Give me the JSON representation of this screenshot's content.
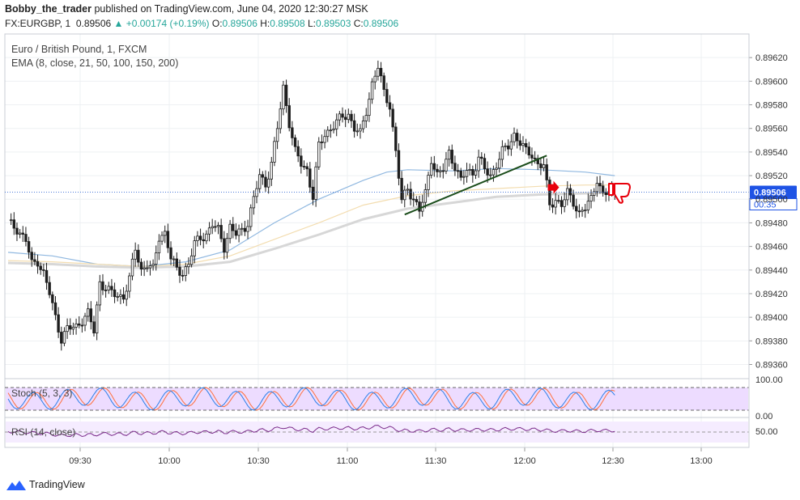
{
  "header": {
    "author": "Bobby_the_trader",
    "published_text": "published on TradingView.com, June 04, 2020 12:30:27 MSK",
    "symbol_line_prefix": "FX:EURGBP, 1",
    "last": "0.89506",
    "change": "+0.00174 (+0.19%)",
    "o_label": "O:",
    "o": "0.89506",
    "h_label": "H:",
    "h": "0.89508",
    "l_label": "L:",
    "l": "0.89503",
    "c_label": "C:",
    "c": "0.89506"
  },
  "legend": {
    "instrument": "Euro / British Pound, 1, FXCM",
    "ema": "EMA (8, close, 21, 50, 100, 150, 200)",
    "stoch": "Stoch (5, 3, 3)",
    "rsi": "RSI (14, close)"
  },
  "price_badge": {
    "value": "0.89506",
    "countdown": "00:35"
  },
  "footer": {
    "brand": "TradingView"
  },
  "colors": {
    "up": "#26a69a",
    "candle": "#1e1e1e",
    "grid": "#eef0f3",
    "ema_blue": "#90b8e0",
    "ema_yellow": "#f3ddb0",
    "ema_gray": "#d7d7d7",
    "trendline": "#1b4d1b",
    "signal": "#e8000b",
    "badge": "#1e53e5",
    "stoch_k": "#2b7fe8",
    "stoch_d": "#ff6f3c",
    "osc_bg": "#eddcff",
    "rsi": "#7a2a8a"
  },
  "chart_data": {
    "type": "candlestick",
    "symbol": "FX:EURGBP",
    "timeframe": "1",
    "y_axis": {
      "ticks": [
        "0.89620",
        "0.89600",
        "0.89580",
        "0.89560",
        "0.89540",
        "0.89520",
        "0.89500",
        "0.89480",
        "0.89460",
        "0.89440",
        "0.89420",
        "0.89400",
        "0.89380",
        "0.89360"
      ],
      "range": [
        0.89348,
        0.8964
      ]
    },
    "x_axis": {
      "ticks": [
        "09:30",
        "10:00",
        "10:30",
        "11:00",
        "11:30",
        "12:00",
        "12:30",
        "13:00"
      ]
    },
    "current_price": 0.89506,
    "close_path": [
      [
        0,
        0.8948
      ],
      [
        3,
        0.89475
      ],
      [
        6,
        0.89465
      ],
      [
        8,
        0.89445
      ],
      [
        10,
        0.89448
      ],
      [
        12,
        0.89437
      ],
      [
        14,
        0.8942
      ],
      [
        16,
        0.894
      ],
      [
        18,
        0.89382
      ],
      [
        20,
        0.8939
      ],
      [
        23,
        0.89392
      ],
      [
        25,
        0.89398
      ],
      [
        27,
        0.89403
      ],
      [
        29,
        0.89388
      ],
      [
        31,
        0.8943
      ],
      [
        34,
        0.89422
      ],
      [
        37,
        0.89418
      ],
      [
        39,
        0.89418
      ],
      [
        41,
        0.89432
      ],
      [
        43,
        0.89458
      ],
      [
        45,
        0.8944
      ],
      [
        47,
        0.89445
      ],
      [
        49,
        0.8944
      ],
      [
        51,
        0.89468
      ],
      [
        53,
        0.89472
      ],
      [
        55,
        0.8945
      ],
      [
        57,
        0.8944
      ],
      [
        59,
        0.89438
      ],
      [
        61,
        0.89445
      ],
      [
        63,
        0.89462
      ],
      [
        65,
        0.89468
      ],
      [
        67,
        0.8947
      ],
      [
        69,
        0.89478
      ],
      [
        71,
        0.89474
      ],
      [
        73,
        0.8946
      ],
      [
        75,
        0.89476
      ],
      [
        77,
        0.8947
      ],
      [
        79,
        0.89474
      ],
      [
        81,
        0.8948
      ],
      [
        83,
        0.895
      ],
      [
        85,
        0.8952
      ],
      [
        87,
        0.89513
      ],
      [
        89,
        0.8953
      ],
      [
        91,
        0.8956
      ],
      [
        93,
        0.89595
      ],
      [
        95,
        0.89565
      ],
      [
        97,
        0.8954
      ],
      [
        99,
        0.8953
      ],
      [
        101,
        0.89525
      ],
      [
        103,
        0.89502
      ],
      [
        105,
        0.89545
      ],
      [
        107,
        0.89555
      ],
      [
        109,
        0.8956
      ],
      [
        111,
        0.89565
      ],
      [
        113,
        0.8957
      ],
      [
        115,
        0.89572
      ],
      [
        117,
        0.8956
      ],
      [
        119,
        0.89555
      ],
      [
        121,
        0.89575
      ],
      [
        123,
        0.89598
      ],
      [
        125,
        0.89612
      ],
      [
        127,
        0.8959
      ],
      [
        129,
        0.8958
      ],
      [
        131,
        0.8954
      ],
      [
        133,
        0.89498
      ],
      [
        135,
        0.8951
      ],
      [
        137,
        0.895
      ],
      [
        139,
        0.8949
      ],
      [
        141,
        0.89505
      ],
      [
        143,
        0.89535
      ],
      [
        145,
        0.8952
      ],
      [
        147,
        0.89525
      ],
      [
        149,
        0.8954
      ],
      [
        151,
        0.89528
      ],
      [
        153,
        0.89515
      ],
      [
        155,
        0.89525
      ],
      [
        157,
        0.89522
      ],
      [
        159,
        0.89535
      ],
      [
        161,
        0.89525
      ],
      [
        163,
        0.8952
      ],
      [
        165,
        0.8953
      ],
      [
        167,
        0.8954
      ],
      [
        169,
        0.89545
      ],
      [
        171,
        0.89555
      ],
      [
        173,
        0.89548
      ],
      [
        175,
        0.8954
      ],
      [
        177,
        0.89538
      ],
      [
        179,
        0.8953
      ],
      [
        181,
        0.89528
      ],
      [
        183,
        0.89495
      ],
      [
        185,
        0.895
      ],
      [
        187,
        0.89495
      ],
      [
        189,
        0.89505
      ],
      [
        191,
        0.89498
      ],
      [
        193,
        0.89488
      ],
      [
        195,
        0.89492
      ],
      [
        197,
        0.895
      ],
      [
        199,
        0.89518
      ],
      [
        201,
        0.89503
      ],
      [
        203,
        0.89506
      ],
      [
        205,
        0.89506
      ]
    ],
    "ema_lines": [
      {
        "color_key": "ema_blue",
        "points": [
          [
            0,
            0.89455
          ],
          [
            15,
            0.89452
          ],
          [
            30,
            0.89445
          ],
          [
            45,
            0.89443
          ],
          [
            60,
            0.89447
          ],
          [
            75,
            0.89457
          ],
          [
            90,
            0.8948
          ],
          [
            105,
            0.895
          ],
          [
            120,
            0.89516
          ],
          [
            128,
            0.89523
          ],
          [
            135,
            0.89525
          ],
          [
            150,
            0.89524
          ],
          [
            165,
            0.89526
          ],
          [
            180,
            0.89525
          ],
          [
            195,
            0.89523
          ],
          [
            205,
            0.8952
          ]
        ]
      },
      {
        "color_key": "ema_yellow",
        "points": [
          [
            0,
            0.89448
          ],
          [
            15,
            0.89447
          ],
          [
            30,
            0.89445
          ],
          [
            45,
            0.89443
          ],
          [
            60,
            0.89445
          ],
          [
            75,
            0.89452
          ],
          [
            90,
            0.89466
          ],
          [
            105,
            0.8948
          ],
          [
            120,
            0.89495
          ],
          [
            135,
            0.89503
          ],
          [
            150,
            0.89507
          ],
          [
            165,
            0.89509
          ],
          [
            180,
            0.89511
          ],
          [
            195,
            0.89512
          ],
          [
            205,
            0.89512
          ]
        ]
      },
      {
        "color_key": "ema_gray",
        "width": 3,
        "points": [
          [
            0,
            0.89446
          ],
          [
            15,
            0.89445
          ],
          [
            30,
            0.89443
          ],
          [
            45,
            0.89442
          ],
          [
            60,
            0.89443
          ],
          [
            75,
            0.89447
          ],
          [
            90,
            0.89458
          ],
          [
            105,
            0.8947
          ],
          [
            120,
            0.89483
          ],
          [
            135,
            0.89492
          ],
          [
            150,
            0.89497
          ],
          [
            165,
            0.89502
          ],
          [
            180,
            0.89504
          ],
          [
            195,
            0.89505
          ],
          [
            205,
            0.89506
          ]
        ]
      }
    ],
    "trendline": [
      [
        134,
        0.89487
      ],
      [
        182,
        0.89537
      ]
    ],
    "stoch_levels": [
      "100.00",
      "0.00"
    ],
    "rsi_levels": [
      "50.00"
    ]
  }
}
